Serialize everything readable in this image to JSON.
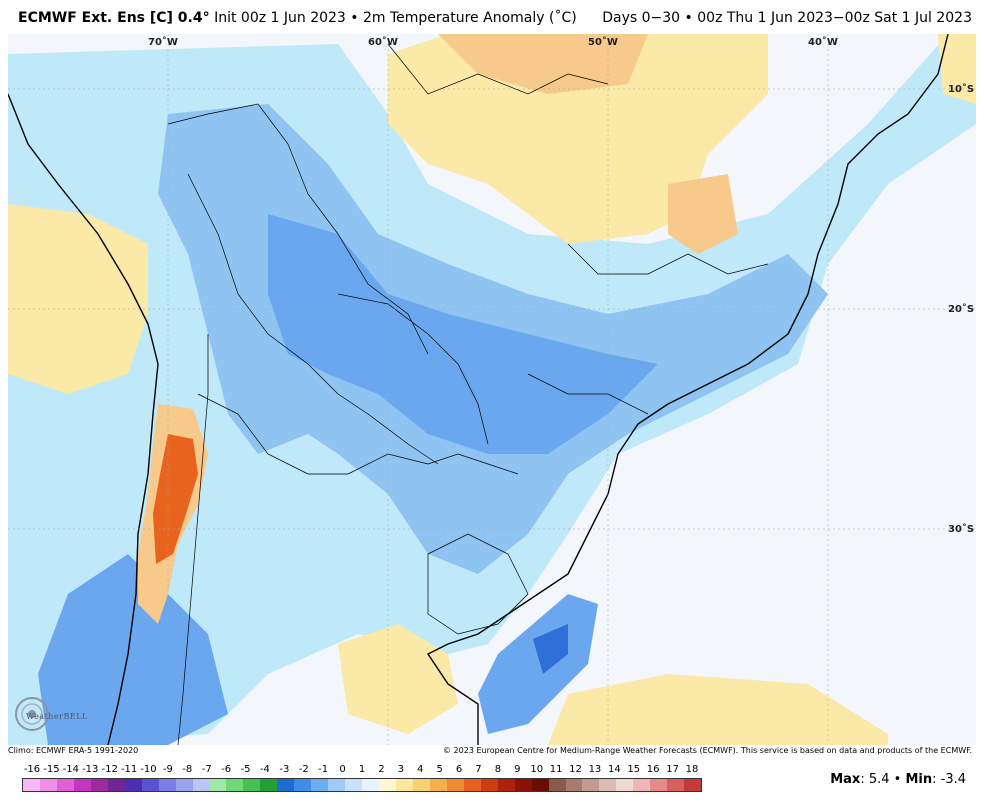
{
  "header": {
    "brand": "ECMWF Ext. Ens [C] 0.4°",
    "init": "Init 00z 1 Jun 2023 • 2m Temperature Anomaly (˚C)",
    "range": "Days 0−30 • 00z Thu 1 Jun 2023−00z Sat 1 Jul 2023"
  },
  "map": {
    "lon_labels": [
      "70˚W",
      "60˚W",
      "50˚W",
      "40˚W"
    ],
    "lat_labels": [
      "10˚S",
      "20˚S",
      "30˚S"
    ]
  },
  "footer": {
    "climo": "Climo: ECMWF ERA-5 1991-2020",
    "copyright": "© 2023 European Centre for Medium-Range Weather Forecasts (ECMWF). This service is based on data and products of the ECMWF.",
    "logo": "WeatherBELL"
  },
  "colorbar": {
    "ticks": [
      "-16",
      "-15",
      "-14",
      "-13",
      "-12",
      "-11",
      "-10",
      "-9",
      "-8",
      "-7",
      "-6",
      "-5",
      "-4",
      "-3",
      "-2",
      "-1",
      "0",
      "1",
      "2",
      "3",
      "4",
      "5",
      "6",
      "7",
      "8",
      "9",
      "10",
      "11",
      "12",
      "13",
      "14",
      "15",
      "16",
      "17",
      "18"
    ],
    "colors": [
      "#f7b9f2",
      "#ee8ee6",
      "#df5fd6",
      "#c436bf",
      "#9f2a9e",
      "#6f2596",
      "#4c2fb0",
      "#5a52d2",
      "#7a7de4",
      "#9aa3ee",
      "#b9c6f5",
      "#9fe8a8",
      "#6fd97a",
      "#44c252",
      "#249e36",
      "#1c6cd1",
      "#3f8ee6",
      "#6aaef0",
      "#9fcaf6",
      "#c8e2fb",
      "#e9f3fd",
      "#fdf7d2",
      "#fbe79e",
      "#f8cf72",
      "#f4b04b",
      "#ef8a30",
      "#e4611f",
      "#cf3c12",
      "#ae220c",
      "#8a1206",
      "#6a0e05",
      "#8a5a4c",
      "#a67a6c",
      "#c29a8f",
      "#dbbbb3",
      "#eedad5",
      "#f0b6b6",
      "#e58a8a",
      "#d65f5f",
      "#c23a3a"
    ]
  },
  "stats": {
    "max_label": "Max",
    "max": ": 5.4",
    "sep": " • ",
    "min_label": "Min",
    "min": ": -3.4"
  },
  "colors": {
    "cold_deep": "#2f6fd8",
    "cold": "#6aa7ee",
    "cool": "#a9dcf7",
    "warm": "#fbe9a8",
    "warmer": "#f7c98a",
    "hot": "#e8641e"
  }
}
